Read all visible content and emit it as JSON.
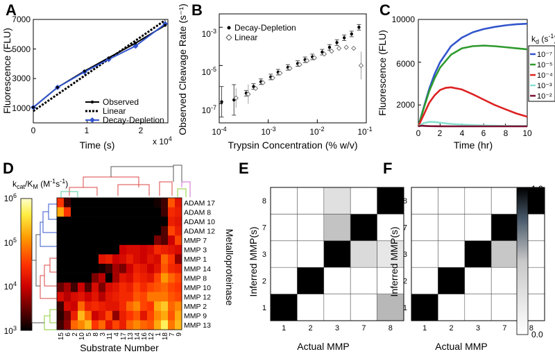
{
  "colors": {
    "blue": "#3355cc",
    "green": "#2e9a2e",
    "red": "#dd2222",
    "cyan": "#88e0d0",
    "maroon": "#7a1030",
    "dgray": "#222222"
  },
  "chart_data": [
    {
      "panel": "A",
      "type": "line",
      "xlabel": "Time (s)",
      "ylabel": "Fluorescence (FLU)",
      "x_multiplier": "x 10^4",
      "x_ticks": [
        "0",
        "1",
        "2"
      ],
      "y_ticks": [
        "1000",
        "3000",
        "5000",
        "7000"
      ],
      "xlim": [
        0,
        2.5
      ],
      "ylim": [
        0,
        7000
      ],
      "series": [
        {
          "name": "Observed",
          "style": "solid",
          "x": [
            0,
            0.45,
            0.95,
            1.4,
            1.9,
            2.45
          ],
          "y": [
            1050,
            2400,
            3500,
            4400,
            5400,
            6600
          ]
        },
        {
          "name": "Linear",
          "style": "dotted",
          "x": [
            0,
            2.45
          ],
          "y": [
            800,
            6950
          ]
        },
        {
          "name": "Decay-Depletion",
          "style": "diamond",
          "x": [
            0,
            0.45,
            0.95,
            1.4,
            1.9,
            2.45
          ],
          "y": [
            1050,
            2400,
            3450,
            4300,
            5200,
            6700
          ]
        }
      ],
      "legend": [
        "Observed",
        "Linear",
        "Decay-Depletion"
      ]
    },
    {
      "panel": "B",
      "type": "scatter",
      "xlabel": "Trypsin Concentration (% w/v)",
      "ylabel": "Observed Cleavage Rate (s⁻¹)",
      "x_scale": "log",
      "y_scale": "log",
      "x_ticks": [
        "10⁻⁴",
        "10⁻³",
        "10⁻²",
        "10⁻¹"
      ],
      "y_ticks": [
        "10⁻⁷",
        "10⁻⁵",
        "10⁻³"
      ],
      "xlim_log10": [
        -4,
        -1
      ],
      "ylim_log10": [
        -8,
        -2.3
      ],
      "series": [
        {
          "name": "Decay-Depletion",
          "marker": "dot",
          "log10x": [
            -3.95,
            -3.7,
            -3.45,
            -3.3,
            -3.15,
            -2.95,
            -2.8,
            -2.6,
            -2.4,
            -2.25,
            -2.1,
            -1.9,
            -1.75,
            -1.6,
            -1.45,
            -1.3,
            -1.15
          ],
          "log10y": [
            -6.9,
            -6.8,
            -6.45,
            -6.1,
            -5.85,
            -5.6,
            -5.35,
            -5.1,
            -4.9,
            -4.7,
            -4.55,
            -4.3,
            -4.05,
            -3.8,
            -3.55,
            -3.35,
            -3.0
          ]
        },
        {
          "name": "Linear",
          "marker": "diamond",
          "log10x": [
            -3.7,
            -3.45,
            -3.3,
            -3.15,
            -2.95,
            -2.8,
            -2.6,
            -2.4,
            -2.25,
            -2.1,
            -1.9,
            -1.75,
            -1.6,
            -1.45,
            -1.3,
            -1.15
          ],
          "log10y": [
            -6.7,
            -6.5,
            -6.2,
            -5.9,
            -5.65,
            -5.4,
            -5.15,
            -4.95,
            -4.75,
            -4.6,
            -4.4,
            -4.25,
            -4.1,
            -4.05,
            -4.1,
            -5.0
          ]
        }
      ],
      "legend": [
        "Decay-Depletion",
        "Linear"
      ]
    },
    {
      "panel": "C",
      "type": "line",
      "xlabel": "Time (hr)",
      "ylabel": "Fluorescence (FLU)",
      "x_ticks": [
        "0",
        "2",
        "4",
        "6",
        "8",
        "10"
      ],
      "y_ticks": [
        "2000",
        "6000",
        "10000"
      ],
      "xlim": [
        0,
        10
      ],
      "ylim": [
        0,
        10000
      ],
      "legend_title": "k_d (s⁻¹)",
      "series": [
        {
          "name": "10⁻⁷",
          "color": "#3355cc",
          "x": [
            0,
            0.5,
            1,
            1.5,
            2,
            3,
            4,
            5,
            6,
            7,
            8,
            9,
            10
          ],
          "y": [
            0,
            1800,
            3500,
            4900,
            6000,
            7500,
            8300,
            8800,
            9100,
            9300,
            9450,
            9550,
            9600
          ]
        },
        {
          "name": "10⁻⁵",
          "color": "#2e9a2e",
          "x": [
            0,
            0.5,
            1,
            1.5,
            2,
            3,
            4,
            5,
            6,
            7,
            8,
            9,
            10
          ],
          "y": [
            0,
            1700,
            3300,
            4500,
            5500,
            6700,
            7300,
            7500,
            7550,
            7500,
            7400,
            7300,
            7200
          ]
        },
        {
          "name": "10⁻⁴",
          "color": "#dd2222",
          "x": [
            0,
            0.5,
            1,
            1.5,
            2,
            2.5,
            3,
            4,
            5,
            6,
            7,
            8,
            9,
            10
          ],
          "y": [
            0,
            1100,
            2200,
            2900,
            3400,
            3600,
            3650,
            3450,
            3000,
            2500,
            2000,
            1600,
            1200,
            900
          ]
        },
        {
          "name": "10⁻³",
          "color": "#88e0d0",
          "x": [
            0,
            0.5,
            1,
            1.5,
            2,
            3,
            4,
            5,
            6,
            8,
            10
          ],
          "y": [
            0,
            300,
            420,
            400,
            340,
            230,
            160,
            110,
            80,
            40,
            20
          ]
        },
        {
          "name": "10⁻²",
          "color": "#7a1030",
          "x": [
            0,
            0.3,
            0.6,
            1,
            2,
            4,
            6,
            10
          ],
          "y": [
            0,
            60,
            40,
            20,
            8,
            2,
            0,
            0
          ]
        }
      ]
    },
    {
      "panel": "D",
      "type": "heatmap",
      "colorbar_label": "k_cat/K_M (M⁻¹s⁻¹)",
      "colorbar_ticks": [
        "10⁶",
        "10⁵",
        "10⁴",
        "10³"
      ],
      "log10_range": [
        3,
        6
      ],
      "ylabel": "Metalloproteinase",
      "xlabel": "Substrate Number",
      "rows": [
        "ADAM 17",
        "ADAM 8",
        "ADAM 10",
        "ADAM 12",
        "MMP 7",
        "MMP 3",
        "MMP 1",
        "MMP 14",
        "MMP 8",
        "MMP 10",
        "MMP 12",
        "MMP 2",
        "MMP 9",
        "MMP 13"
      ],
      "columns": [
        "15",
        "6",
        "2",
        "10",
        "5",
        "8",
        "3",
        "11",
        "4",
        "17",
        "13",
        "14",
        "16",
        "12",
        "1",
        "18",
        "7",
        "9"
      ],
      "values": [
        [
          4.5,
          3.3,
          3.0,
          3.0,
          3.0,
          3.0,
          3.0,
          3.0,
          3.0,
          3.0,
          3.0,
          3.0,
          3.0,
          3.0,
          3.1,
          3.3,
          4.7,
          4.2
        ],
        [
          5.2,
          4.5,
          3.0,
          3.0,
          3.0,
          3.0,
          3.0,
          3.0,
          3.0,
          3.0,
          3.0,
          3.0,
          3.0,
          3.0,
          3.0,
          3.3,
          4.4,
          4.3
        ],
        [
          3.0,
          3.0,
          3.0,
          3.0,
          3.0,
          3.0,
          3.0,
          3.0,
          3.0,
          3.0,
          3.0,
          3.0,
          3.0,
          3.0,
          3.0,
          3.0,
          4.3,
          4.2
        ],
        [
          3.0,
          3.0,
          3.0,
          3.0,
          3.0,
          3.0,
          3.0,
          3.0,
          3.0,
          3.0,
          3.0,
          3.0,
          3.0,
          3.0,
          3.0,
          3.4,
          4.6,
          4.3
        ],
        [
          3.0,
          3.0,
          3.0,
          3.0,
          3.0,
          3.0,
          3.0,
          3.0,
          3.0,
          3.0,
          3.0,
          3.0,
          3.0,
          3.0,
          3.6,
          3.4,
          4.0,
          4.6
        ],
        [
          3.0,
          3.0,
          3.0,
          3.0,
          3.0,
          3.0,
          3.0,
          3.0,
          3.0,
          4.0,
          4.1,
          4.1,
          4.0,
          4.1,
          4.4,
          4.3,
          4.2,
          4.1
        ],
        [
          3.0,
          3.0,
          3.0,
          3.0,
          3.0,
          3.0,
          4.2,
          4.3,
          4.0,
          4.1,
          4.3,
          4.1,
          4.0,
          4.2,
          4.1,
          4.8,
          4.5,
          3.7
        ],
        [
          3.0,
          3.0,
          3.0,
          3.0,
          3.0,
          3.0,
          3.1,
          3.3,
          3.8,
          3.6,
          4.0,
          4.3,
          4.2,
          4.0,
          4.2,
          4.7,
          4.4,
          4.3
        ],
        [
          3.0,
          3.0,
          3.0,
          3.0,
          3.0,
          3.6,
          3.9,
          3.0,
          3.8,
          4.2,
          4.1,
          4.4,
          4.3,
          4.2,
          4.6,
          5.1,
          4.8,
          4.6
        ],
        [
          3.5,
          3.8,
          3.3,
          4.0,
          3.4,
          4.1,
          3.6,
          4.1,
          4.2,
          4.4,
          4.3,
          4.6,
          4.4,
          4.6,
          4.7,
          4.8,
          4.6,
          4.5
        ],
        [
          4.1,
          3.9,
          4.1,
          4.2,
          4.0,
          4.2,
          3.9,
          4.2,
          4.3,
          4.4,
          4.4,
          4.7,
          4.6,
          4.9,
          4.9,
          4.9,
          4.7,
          4.6
        ],
        [
          3.3,
          4.1,
          4.0,
          4.8,
          4.3,
          4.4,
          4.3,
          4.2,
          4.2,
          4.4,
          4.8,
          5.0,
          4.6,
          4.5,
          5.2,
          5.4,
          4.8,
          5.0
        ],
        [
          3.2,
          3.6,
          4.3,
          5.3,
          4.8,
          4.0,
          4.2,
          4.6,
          3.7,
          4.3,
          4.5,
          4.7,
          4.2,
          4.6,
          5.0,
          5.2,
          4.7,
          5.2
        ],
        [
          3.3,
          3.7,
          4.8,
          5.0,
          5.3,
          4.5,
          4.8,
          4.2,
          4.6,
          4.3,
          4.8,
          5.0,
          4.8,
          4.7,
          5.2,
          5.7,
          4.9,
          5.3
        ]
      ]
    },
    {
      "panel": "E",
      "type": "heatmap",
      "xlabel": "Actual MMP",
      "ylabel": "Inferred MMP(s)",
      "x_categories": [
        "1",
        "2",
        "3",
        "7",
        "8"
      ],
      "y_categories": [
        "1",
        "2",
        "3",
        "7",
        "8"
      ],
      "values": [
        [
          1.0,
          0,
          0,
          0,
          0.12
        ],
        [
          0,
          1.0,
          0,
          0,
          0
        ],
        [
          0,
          0,
          1.0,
          0.04,
          0.02
        ],
        [
          0,
          0,
          0.09,
          1.0,
          0
        ],
        [
          0,
          0,
          0.03,
          0,
          1.0
        ]
      ]
    },
    {
      "panel": "F",
      "type": "heatmap",
      "xlabel": "Actual MMP",
      "ylabel": "Inferred MMP(s)",
      "x_categories": [
        "1",
        "2",
        "3",
        "7",
        "8"
      ],
      "y_categories": [
        "1",
        "2",
        "3",
        "7",
        "8"
      ],
      "colorbar_ticks": [
        "1.0",
        "0.0"
      ],
      "value_range": [
        0,
        1
      ],
      "values": [
        [
          1.0,
          0,
          0,
          0,
          0
        ],
        [
          0,
          1.0,
          0,
          0,
          0
        ],
        [
          0,
          0,
          1.0,
          0.08,
          0
        ],
        [
          0,
          0,
          0,
          1.0,
          0
        ],
        [
          0,
          0,
          0,
          0,
          1.0
        ]
      ]
    }
  ]
}
